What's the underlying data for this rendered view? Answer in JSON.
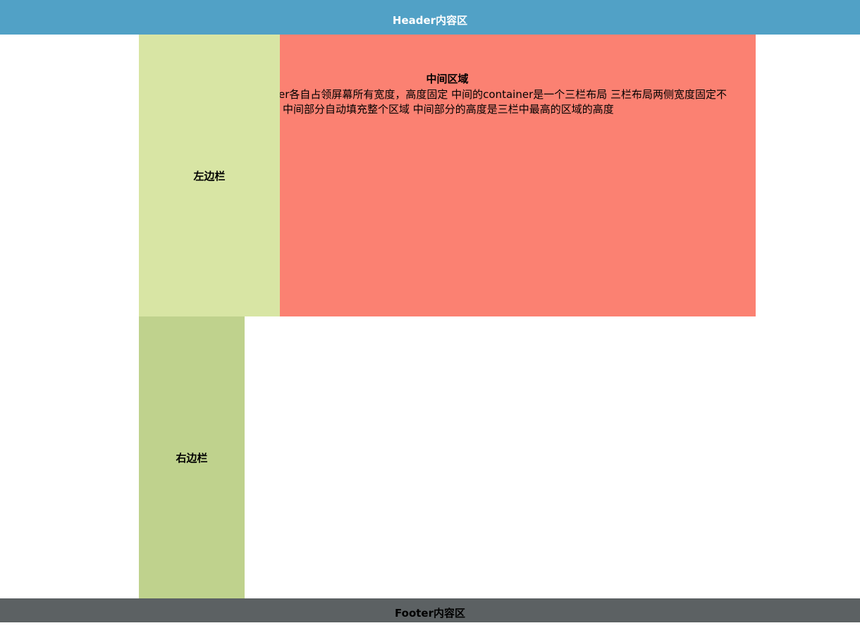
{
  "header": {
    "text": "Header内容区"
  },
  "left_sidebar": {
    "text": "左边栏"
  },
  "main": {
    "title": "中间区域",
    "lines": [
      "er各自占领屏幕所有宽度，高度固定 中间的container是一个三栏布局 三栏布局两侧宽度固定不",
      "中间部分自动填充整个区域 中间部分的高度是三栏中最高的区域的高度"
    ]
  },
  "right_sidebar": {
    "text": "右边栏"
  },
  "footer": {
    "text": "Footer内容区"
  },
  "colors": {
    "header": "#51a1c6",
    "left": "#d8e5a4",
    "main": "#fb8172",
    "right": "#bfd28d",
    "footer": "#5c6163"
  }
}
